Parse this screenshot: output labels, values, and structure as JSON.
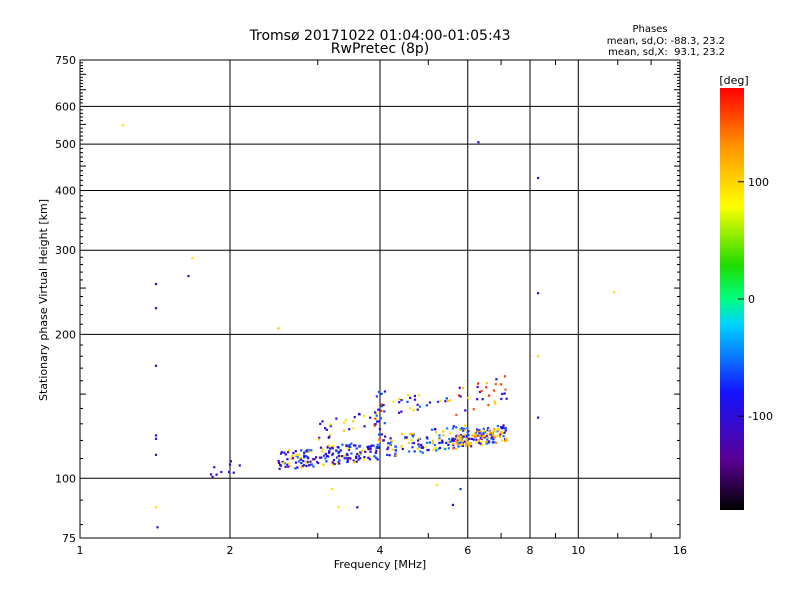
{
  "chart_data": {
    "type": "scatter",
    "title": "Tromsø 20171022 01:04:00-01:05:43",
    "subtitle": "RwPretec (8p)",
    "xlabel": "Frequency [MHz]",
    "ylabel": "Stationary phase Virtual Height [km]",
    "x_scale": "log",
    "y_scale": "log",
    "xlim": [
      1,
      16
    ],
    "ylim": [
      75,
      750
    ],
    "x_ticks": [
      1,
      2,
      4,
      6,
      8,
      10,
      16
    ],
    "y_ticks": [
      75,
      100,
      200,
      300,
      400,
      500,
      600,
      750
    ],
    "grid": true,
    "legend": {
      "title": "Phases",
      "lines": [
        "mean, sd,O: -88.3, 23.2",
        "mean, sd,X:  93.1, 23.2"
      ]
    },
    "colorbar": {
      "label": "[deg]",
      "min": -180,
      "max": 180,
      "ticks": [
        100,
        0,
        -100
      ],
      "placement": "right"
    },
    "points": [
      {
        "x": 1.22,
        "y": 548,
        "phase": 95
      },
      {
        "x": 1.42,
        "y": 255,
        "phase": -110
      },
      {
        "x": 1.42,
        "y": 227,
        "phase": -110
      },
      {
        "x": 1.42,
        "y": 172,
        "phase": -110
      },
      {
        "x": 1.42,
        "y": 123,
        "phase": -110
      },
      {
        "x": 1.42,
        "y": 121,
        "phase": -110
      },
      {
        "x": 1.42,
        "y": 112,
        "phase": -110
      },
      {
        "x": 1.42,
        "y": 87,
        "phase": 95
      },
      {
        "x": 1.43,
        "y": 79,
        "phase": -110
      },
      {
        "x": 1.65,
        "y": 265,
        "phase": -110
      },
      {
        "x": 1.68,
        "y": 289,
        "phase": 95
      },
      {
        "x": 2.5,
        "y": 206,
        "phase": 110
      },
      {
        "x": 3.2,
        "y": 95,
        "phase": 95
      },
      {
        "x": 3.3,
        "y": 87,
        "phase": 95
      },
      {
        "x": 3.6,
        "y": 87,
        "phase": -110
      },
      {
        "x": 5.2,
        "y": 97,
        "phase": 95
      },
      {
        "x": 5.6,
        "y": 88,
        "phase": -110
      },
      {
        "x": 5.8,
        "y": 95,
        "phase": -70
      },
      {
        "x": 6.3,
        "y": 505,
        "phase": -110
      },
      {
        "x": 8.3,
        "y": 425,
        "phase": -110
      },
      {
        "x": 8.3,
        "y": 244,
        "phase": -110
      },
      {
        "x": 8.3,
        "y": 180,
        "phase": 95
      },
      {
        "x": 8.3,
        "y": 134,
        "phase": -110
      },
      {
        "x": 11.8,
        "y": 245,
        "phase": 95
      }
    ],
    "clusters": [
      {
        "x_range": [
          1.8,
          2.1
        ],
        "y_range": [
          97,
          112
        ],
        "count": 10,
        "phase_values": [
          -110
        ]
      },
      {
        "x_range": [
          2.5,
          4.0
        ],
        "y_range": [
          104,
          120
        ],
        "count": 190,
        "phase_values": [
          -110,
          -130,
          -90,
          -60,
          100
        ]
      },
      {
        "x_range": [
          3.0,
          4.0
        ],
        "y_range": [
          120,
          140
        ],
        "count": 30,
        "phase_values": [
          -110,
          -100,
          100
        ]
      },
      {
        "x_range": [
          3.9,
          4.1
        ],
        "y_range": [
          110,
          170
        ],
        "count": 20,
        "phase_values": [
          -110,
          -60,
          160
        ]
      },
      {
        "x_range": [
          4.0,
          6.0
        ],
        "y_range": [
          110,
          130
        ],
        "count": 120,
        "phase_values": [
          -110,
          -70,
          -50,
          100
        ]
      },
      {
        "x_range": [
          4.2,
          5.6
        ],
        "y_range": [
          135,
          155
        ],
        "count": 25,
        "phase_values": [
          -110,
          -60,
          100
        ]
      },
      {
        "x_range": [
          5.6,
          7.2
        ],
        "y_range": [
          115,
          130
        ],
        "count": 80,
        "phase_values": [
          -110,
          -90,
          -60
        ]
      },
      {
        "x_range": [
          5.6,
          7.2
        ],
        "y_range": [
          115,
          128
        ],
        "count": 70,
        "phase_values": [
          100,
          110,
          130
        ]
      },
      {
        "x_range": [
          5.6,
          7.2
        ],
        "y_range": [
          135,
          165
        ],
        "count": 30,
        "phase_values": [
          -110,
          110,
          160
        ]
      }
    ]
  }
}
